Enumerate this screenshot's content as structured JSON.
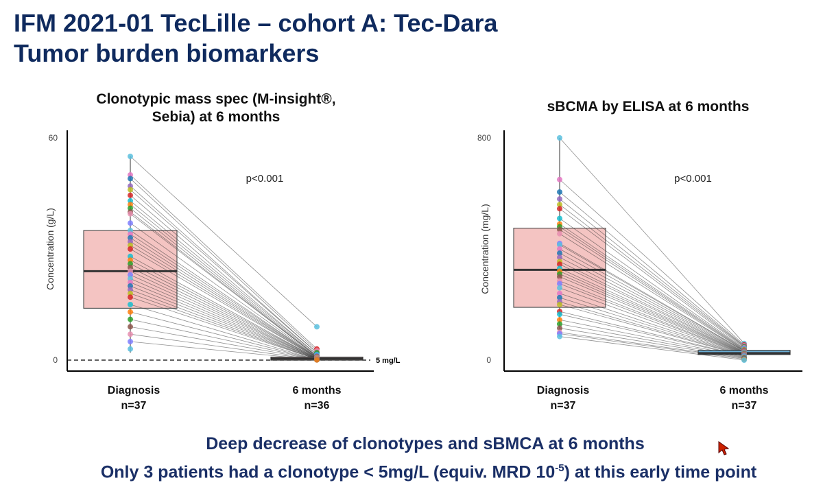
{
  "header": {
    "title_line1": "IFM 2021-01 TecLille – cohort A: Tec-Dara",
    "title_line2": "Tumor burden biomarkers"
  },
  "footer": {
    "line1": "Deep decrease of clonotypes and sBMCA at 6 months",
    "line2_before": "Only 3 patients had a clonotype < 5mg/L (equiv. MRD 10",
    "line2_sup": "-5",
    "line2_after": ") at this early time point"
  },
  "colors": {
    "title": "#0f2a5e",
    "footer": "#1a2f66",
    "box_fill": "#f4c4c2",
    "box2_fill": "#6aaed6",
    "cursor": "#cc2200"
  },
  "chart_data": [
    {
      "type": "box-paired-scatter",
      "title_line1": "Clonotypic mass spec (M-insight®,",
      "title_line2": "Sebia) at 6 months",
      "ylabel": "Concentration (g/L)",
      "ylim": [
        0,
        60
      ],
      "yticks": [
        0,
        60
      ],
      "categories": [
        "Diagnosis",
        "6 months"
      ],
      "n_labels": [
        "n=37",
        "n=36"
      ],
      "p_value": "p<0.001",
      "threshold": {
        "value": 0,
        "label": "5 mg/L"
      },
      "boxes": [
        {
          "category": "Diagnosis",
          "q1": 14,
          "median": 24,
          "q3": 35,
          "min": 2,
          "max": 55
        },
        {
          "category": "6 months",
          "q1": 0,
          "median": 0.4,
          "q3": 0.8,
          "min": 0,
          "max": 9
        }
      ],
      "diagnosis": [
        55,
        50,
        49,
        47,
        46,
        44.5,
        43,
        42,
        41,
        40,
        39.5,
        37,
        35,
        34,
        33,
        32,
        31,
        30,
        28,
        27,
        26,
        25,
        24,
        23,
        22,
        21,
        20,
        19,
        18,
        17,
        15,
        13,
        11,
        9,
        7,
        5,
        3
      ],
      "six_months": [
        9,
        3,
        2.5,
        2,
        2,
        1.5,
        1.5,
        1.2,
        1,
        1,
        1,
        0.9,
        0.8,
        0.8,
        0.7,
        0.7,
        0.6,
        0.6,
        0.5,
        0.5,
        0.5,
        0.4,
        0.4,
        0.4,
        0.3,
        0.3,
        0.3,
        0.2,
        0.2,
        0.2,
        0.1,
        0.1,
        0.1,
        0.1,
        0.05,
        0.05,
        null
      ]
    },
    {
      "type": "box-paired-scatter",
      "title_line1": "sBCMA by ELISA at 6 months",
      "ylabel": "Concentration (mg/L)",
      "ylim": [
        0,
        800
      ],
      "yticks": [
        0,
        800
      ],
      "categories": [
        "Diagnosis",
        "6 months"
      ],
      "n_labels": [
        "n=37",
        "n=37"
      ],
      "p_value": "p<0.001",
      "boxes": [
        {
          "category": "Diagnosis",
          "q1": 190,
          "median": 325,
          "q3": 475,
          "min": 85,
          "max": 800
        },
        {
          "category": "6 months",
          "q1": 20,
          "median": 25,
          "q3": 35,
          "min": 0,
          "max": 60
        }
      ],
      "diagnosis": [
        800,
        650,
        605,
        580,
        560,
        545,
        510,
        490,
        480,
        470,
        455,
        420,
        415,
        400,
        385,
        370,
        355,
        345,
        330,
        320,
        310,
        300,
        285,
        275,
        260,
        240,
        225,
        210,
        200,
        175,
        165,
        145,
        130,
        115,
        100,
        95,
        85
      ],
      "six_months": [
        60,
        55,
        52,
        50,
        48,
        45,
        42,
        40,
        38,
        36,
        35,
        34,
        33,
        32,
        30,
        29,
        28,
        27,
        26,
        25,
        24,
        23,
        22,
        21,
        20,
        19,
        18,
        17,
        16,
        15,
        14,
        12,
        10,
        8,
        6,
        3,
        0
      ]
    }
  ]
}
